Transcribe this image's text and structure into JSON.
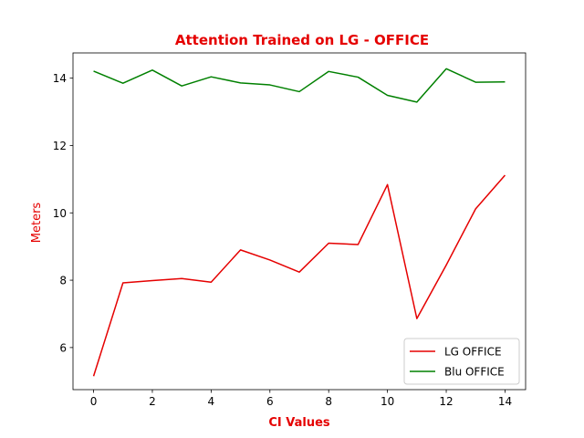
{
  "chart_data": {
    "type": "line",
    "title": "Attention Trained on LG - OFFICE",
    "xlabel": "CI Values",
    "ylabel": "Meters",
    "xlim": [
      -0.7,
      14.7
    ],
    "ylim": [
      4.75,
      14.75
    ],
    "xticks": [
      0,
      2,
      4,
      6,
      8,
      10,
      12,
      14
    ],
    "yticks": [
      6,
      8,
      10,
      12,
      14
    ],
    "x": [
      0,
      1,
      2,
      3,
      4,
      5,
      6,
      7,
      8,
      9,
      10,
      11,
      12,
      13,
      14
    ],
    "series": [
      {
        "name": "LG OFFICE",
        "color": "#e50000",
        "values": [
          5.15,
          7.92,
          7.99,
          8.05,
          7.94,
          8.9,
          8.6,
          8.24,
          9.1,
          9.06,
          10.84,
          6.86,
          8.45,
          10.12,
          11.12
        ]
      },
      {
        "name": "Blu OFFICE",
        "color": "#008000",
        "values": [
          14.21,
          13.85,
          14.24,
          13.77,
          14.04,
          13.86,
          13.8,
          13.6,
          14.2,
          14.03,
          13.49,
          13.29,
          14.28,
          13.88,
          13.89
        ]
      }
    ],
    "legend_position": "lower-right",
    "grid": false,
    "title_color": "#e50000",
    "xlabel_color": "#e50000",
    "ylabel_color": "#e50000"
  }
}
